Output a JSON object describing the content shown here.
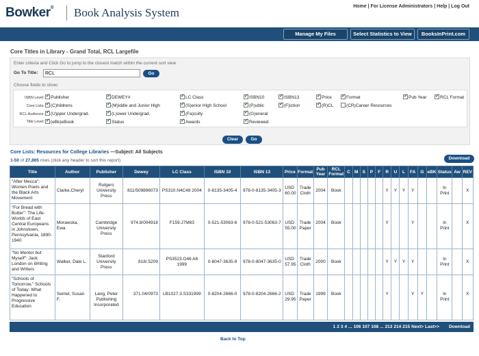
{
  "brand": {
    "logo": "Bowker",
    "reg": "®",
    "app_title": "Book Analysis System"
  },
  "top_links": [
    "Home",
    "For License Administrators",
    "Help",
    "Log Out"
  ],
  "nav": {
    "manage": "Manage My Files",
    "select": "Select Statistics to View",
    "bip": "BooksInPrint.com"
  },
  "page_title": "Core Titles in Library - Grand Total, RCL Largefile",
  "criteria": {
    "instructions": "Enter criteria and Click Go to jump to the closest match within the current sort view",
    "goto_label": "Go To Title:",
    "goto_value": "RCL",
    "go": "Go",
    "choose": "Choose fields to show:",
    "row_labels": [
      "ISBN Level:",
      "Core Lists:",
      "RCL Audience:",
      "Title Level:"
    ],
    "checkboxes": [
      {
        "label": "Publisher",
        "checked": true
      },
      {
        "label": "DEWEY#",
        "checked": true
      },
      {
        "label": "LC Class",
        "checked": true
      },
      {
        "label": "ISBN10",
        "checked": true
      },
      {
        "label": "ISBN13",
        "checked": true
      },
      {
        "label": "Price",
        "checked": true
      },
      {
        "label": "Format",
        "checked": true
      },
      {
        "label": "Pub Year",
        "checked": true
      },
      {
        "label": "RCL Format",
        "checked": true
      },
      {
        "label": "(C)hildrens",
        "checked": true
      },
      {
        "label": "(M)iddle and Junior High",
        "checked": true
      },
      {
        "label": "(S)enior High School",
        "checked": true
      },
      {
        "label": "(P)ublic",
        "checked": true
      },
      {
        "label": "(F)iction",
        "checked": true
      },
      {
        "label": "(R)CL",
        "checked": true
      },
      {
        "label": "(CR)Career Resources",
        "checked": false
      },
      {
        "label": "(U)pper Undergrad.",
        "checked": true
      },
      {
        "label": "(L)ower Undergrad.",
        "checked": true
      },
      {
        "label": "(Fa)culty",
        "checked": true
      },
      {
        "label": "(G)eneral",
        "checked": true
      },
      {
        "label": "(eBk)eBook",
        "checked": true
      },
      {
        "label": "Status",
        "checked": true
      },
      {
        "label": "Awards",
        "checked": true
      },
      {
        "label": "Reviewed",
        "checked": true
      }
    ],
    "clear": "Clear",
    "go2": "Go"
  },
  "results": {
    "list_prefix": "Core Lists: Resources for College Libraries",
    "list_suffix": "—Subject: All Subjects",
    "range": "1-50",
    "of": "of",
    "total": "27,865",
    "rows_note": "rows (click any header to sort this report)",
    "download": "Download",
    "columns": [
      "Title",
      "Author",
      "Publisher",
      "Dewey",
      "LC Class",
      "ISBN 10",
      "ISBN 13",
      "Price",
      "Format",
      "Pub Year",
      "RCL Format",
      "C",
      "M",
      "S",
      "P",
      "F",
      "R",
      "U",
      "L",
      "FA",
      "G",
      "eBK",
      "Status",
      "Aw",
      "REV"
    ],
    "rows": [
      {
        "title": "\"After Mecca\": Women Poets and the Black Arts Movement",
        "author": "Clarke,Cheryl",
        "publisher": "Rutgers University Press",
        "dewey": "811/509896073",
        "lc": "PS310.N4C48 2004",
        "isbn10": "0-8135-3405-4",
        "isbn13": "978-0-8135-3405-3",
        "price": "USD 60.00",
        "format": "Trade Cloth",
        "pubyear": "2004",
        "rcl": "Book",
        "C": "",
        "M": "",
        "S": "",
        "P": "",
        "F": "",
        "R": "Y",
        "U": "Y",
        "L": "Y",
        "FA": "Y",
        "G": "",
        "eBK": "",
        "status": "In Print",
        "aw": "",
        "rev": "X"
      },
      {
        "title": "\"For Bread with Butter\": The Life-Worlds of East Central Europeans in Johnstown, Pennsylvania, 1890-1940",
        "author": "Morawska, Ewa",
        "publisher": "Cambridge University Press",
        "dewey": "974.8/004918",
        "lc": "F159.J7M83",
        "isbn10": "0-521-53063-6",
        "isbn13": "978-0-521-53063-7",
        "price": "USD 55.00",
        "format": "Trade Paper",
        "pubyear": "2004",
        "rcl": "Book",
        "C": "",
        "M": "",
        "S": "",
        "P": "",
        "F": "",
        "R": "Y",
        "U": "",
        "L": "",
        "FA": "Y",
        "G": "",
        "eBK": "",
        "status": "In Print",
        "aw": "",
        "rev": "X"
      },
      {
        "title": "\"No Mentor but Myself\": Jack London on Writing and Writers",
        "author": "Walker, Dale L.",
        "publisher": "Stanford University Press",
        "dewey": "818/.5209",
        "lc": "PS3523.O46 A6 1999",
        "isbn10": "0-8047-3635-9",
        "isbn13": "978-0-8047-3635-0",
        "price": "USD 57.95",
        "format": "Trade Cloth",
        "pubyear": "2000",
        "rcl": "Book",
        "C": "",
        "M": "",
        "S": "",
        "P": "",
        "F": "",
        "R": "Y",
        "U": "Y",
        "L": "Y",
        "FA": "Y",
        "G": "",
        "eBK": "",
        "status": "In Print",
        "aw": "",
        "rev": "X"
      },
      {
        "title": "\"Schools of Tomorrow,\" Schools of Today: What Happened to Progressive Education",
        "author": "Semel, Susan F.",
        "publisher": "Lang, Peter Publishing Incorporated",
        "dewey": "371.04/0973",
        "lc": "LB1027.3.S331999",
        "isbn10": "0-8204-2666-0",
        "isbn13": "978-0-8204-2666-2",
        "price": "USD 29.95",
        "format": "Trade Paper",
        "pubyear": "1999",
        "rcl": "Book",
        "C": "",
        "M": "",
        "S": "",
        "P": "",
        "F": "",
        "R": "Y",
        "U": "",
        "L": "",
        "FA": "Y",
        "G": "Y",
        "eBK": "",
        "status": "In Print",
        "aw": "",
        "rev": "X"
      }
    ],
    "pager": [
      "1",
      "2",
      "3",
      "4",
      "...",
      "106",
      "107",
      "108",
      "...",
      "213",
      "214",
      "215",
      "Next>",
      "Last>>"
    ],
    "pager_download": "Download",
    "back_to_top": "Back to Top"
  }
}
